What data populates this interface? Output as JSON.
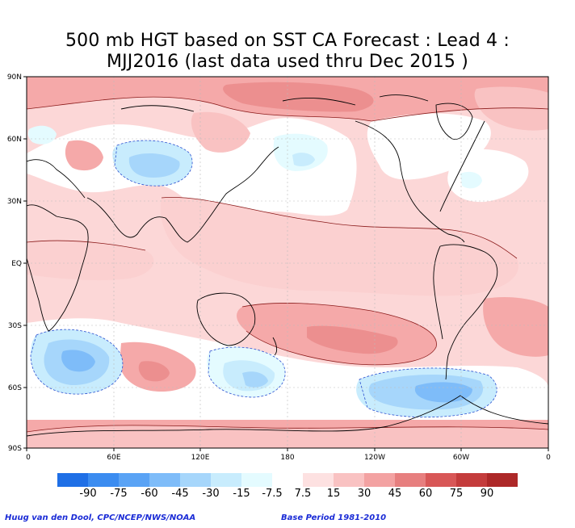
{
  "title": {
    "line1": "500 mb HGT based on SST CA Forecast : Lead 4 :",
    "line2": "MJJ2016 (last data used thru Dec 2015 )"
  },
  "axes": {
    "lat_labels": [
      "90N",
      "60N",
      "30N",
      "EQ",
      "30S",
      "60S",
      "90S"
    ],
    "lon_labels": [
      "0",
      "60E",
      "120E",
      "180",
      "120W",
      "60W",
      "0"
    ]
  },
  "colorbar": {
    "labels": [
      "-90",
      "-75",
      "-60",
      "-45",
      "-30",
      "-15",
      "-7.5",
      "7.5",
      "15",
      "30",
      "45",
      "60",
      "75",
      "90"
    ],
    "colors": [
      "#1f6fe6",
      "#3b8cf0",
      "#5aa3f5",
      "#7ebcf9",
      "#a6d6fb",
      "#c8ecfd",
      "#e4fbff",
      "#ffffff",
      "#fde1e1",
      "#f9c2c2",
      "#f3a2a2",
      "#e77f7f",
      "#d85757",
      "#c43c3c",
      "#ad2828"
    ]
  },
  "footer": {
    "left": "Huug van den Dool, CPC/NCEP/NWS/NOAA",
    "right": "Base Period 1981-2010"
  }
}
